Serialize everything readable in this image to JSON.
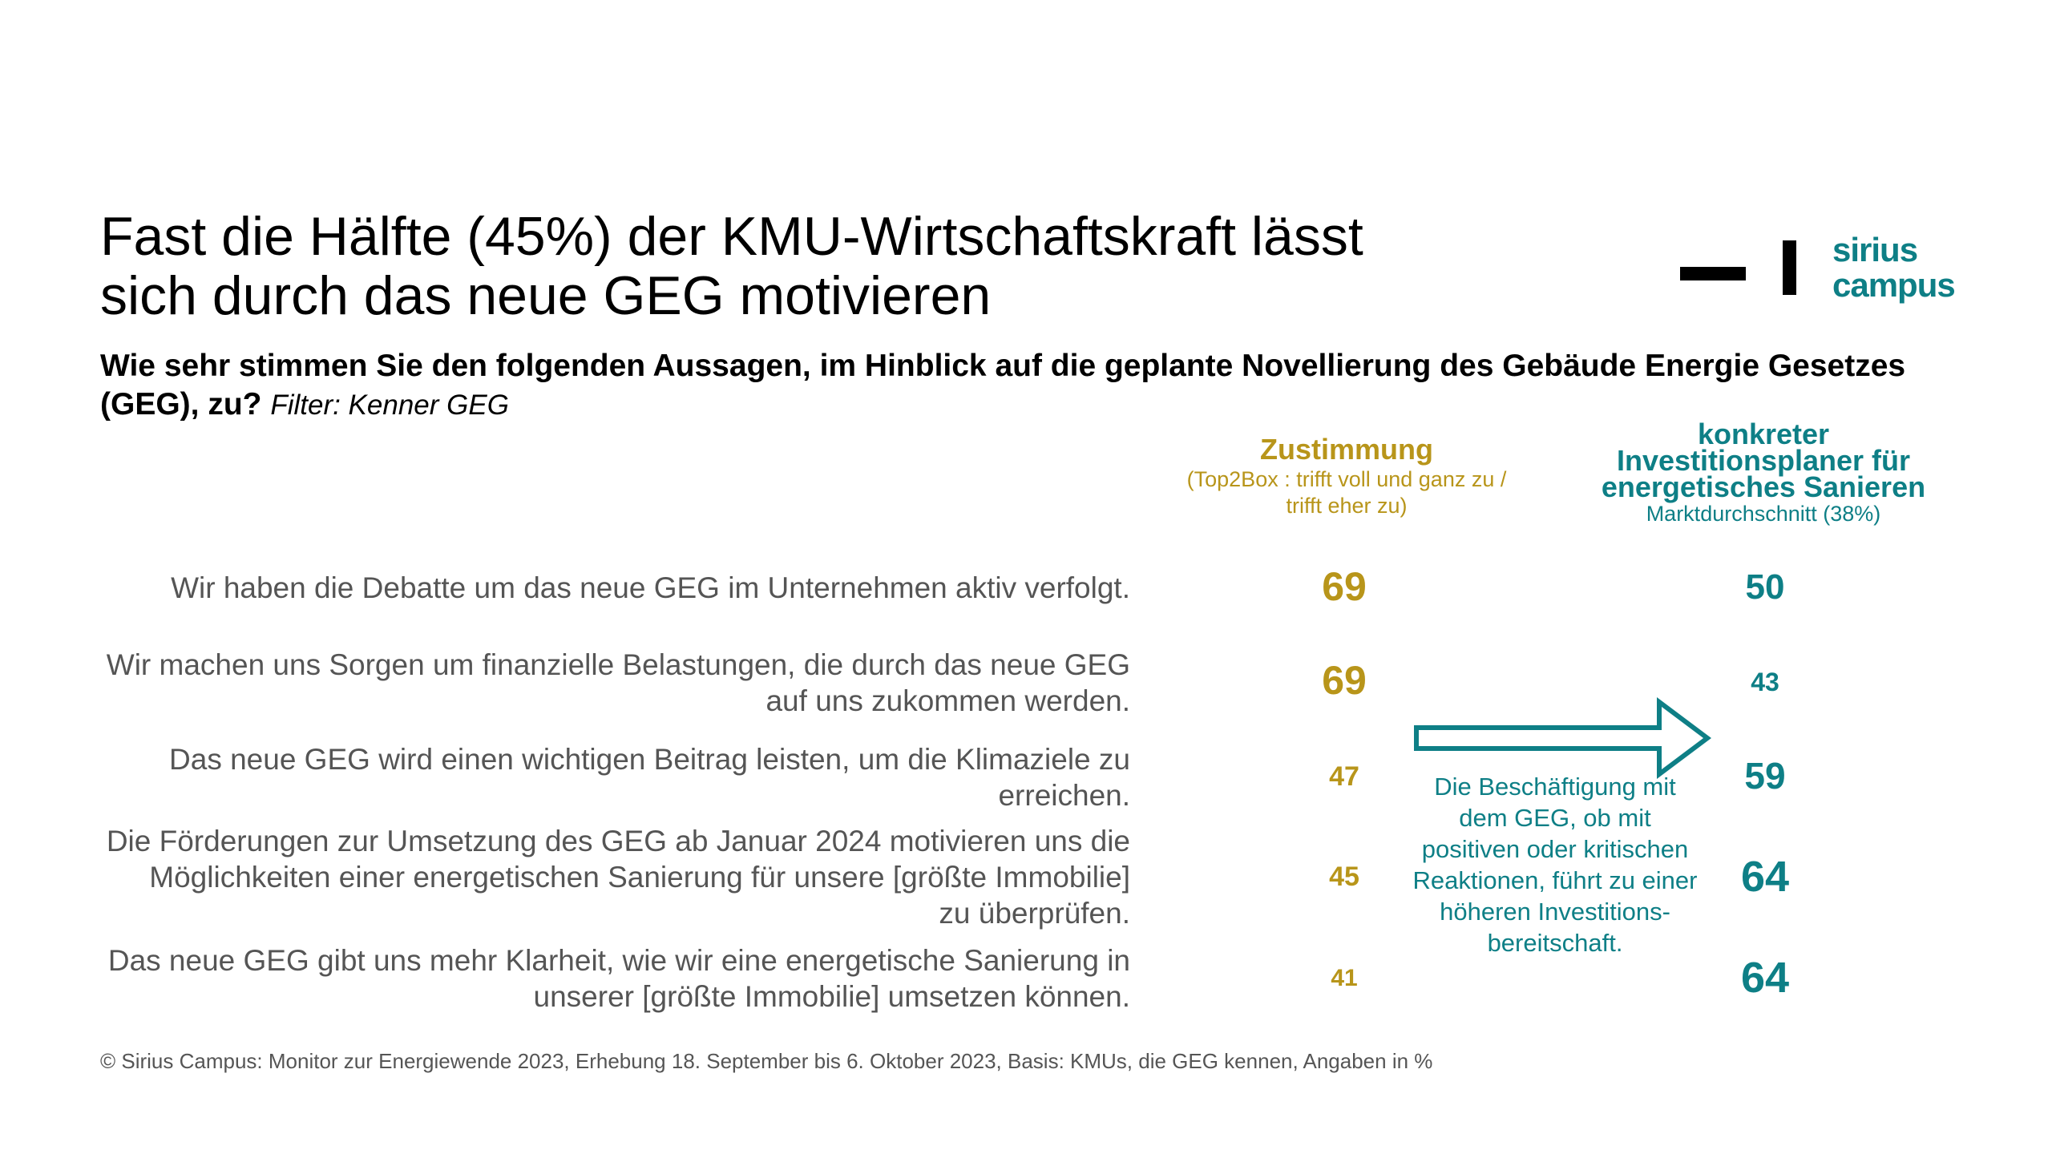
{
  "title": {
    "line1": "Fast die Hälfte (45%) der KMU-Wirtschaftskraft lässt",
    "line2": "sich durch das neue GEG motivieren"
  },
  "logo": {
    "line1": "sirius",
    "line2": "campus",
    "brand_color": "#0e7f86"
  },
  "question": {
    "text": "Wie sehr stimmen Sie den folgenden Aussagen, im Hinblick auf die geplante Novellierung des Gebäude Energie Gesetzes (GEG), zu?",
    "filter": "Filter: Kenner GEG"
  },
  "columns": {
    "zustimmung": {
      "heading": "Zustimmung",
      "sub1": "(Top2Box : trifft voll und ganz zu /",
      "sub2": "trifft eher zu)",
      "color": "#b8951a"
    },
    "investition": {
      "heading1": "konkreter",
      "heading2": "Investitionsplaner für",
      "heading3": "energetisches Sanieren",
      "sub": "Marktdurchschnitt (38%)",
      "color": "#0e7f86"
    }
  },
  "statements": [
    {
      "lines": [
        "Wir haben die Debatte um das neue GEG im Unternehmen aktiv verfolgt."
      ],
      "zustimmung": "69",
      "investition": "50"
    },
    {
      "lines": [
        "Wir machen uns Sorgen um finanzielle Belastungen, die durch das neue GEG",
        "auf uns zukommen werden."
      ],
      "zustimmung": "69",
      "investition": "43"
    },
    {
      "lines": [
        "Das neue GEG wird einen wichtigen Beitrag leisten, um die Klimaziele zu",
        "erreichen."
      ],
      "zustimmung": "47",
      "investition": "59"
    },
    {
      "lines": [
        "Die Förderungen zur Umsetzung des GEG ab Januar 2024 motivieren uns die",
        "Möglichkeiten einer energetischen Sanierung für unsere [größte Immobilie]",
        "zu überprüfen."
      ],
      "zustimmung": "45",
      "investition": "64"
    },
    {
      "lines": [
        "Das neue GEG gibt uns mehr Klarheit, wie wir eine energetische Sanierung in",
        "unserer [größte Immobilie] umsetzen können."
      ],
      "zustimmung": "41",
      "investition": "64"
    }
  ],
  "note": {
    "lines": [
      "Die Beschäftigung mit",
      "dem GEG, ob mit",
      "positiven oder kritischen",
      "Reaktionen, führt zu einer",
      "höheren Investitions-",
      "bereitschaft."
    ]
  },
  "footnote": "© Sirius Campus: Monitor zur Energiewende 2023, Erhebung 18. September bis 6. Oktober 2023, Basis: KMUs, die GEG kennen, Angaben in %"
}
